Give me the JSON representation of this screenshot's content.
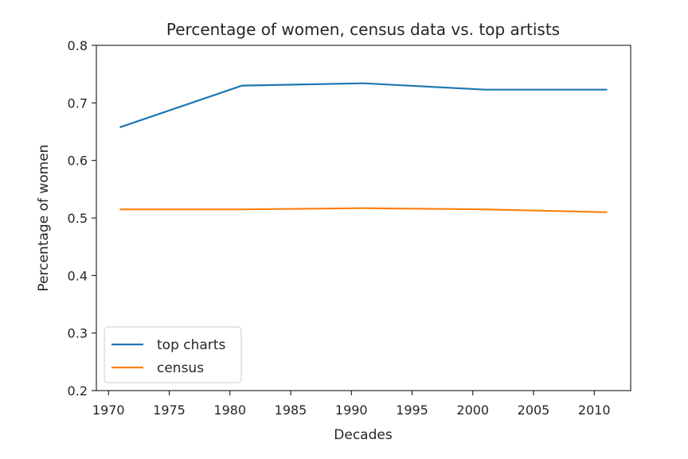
{
  "chart_data": {
    "type": "line",
    "title": "Percentage of women, census data vs. top artists",
    "xlabel": "Decades",
    "ylabel": "Percentage of women",
    "xlim": [
      1969.0,
      2013.0
    ],
    "ylim": [
      0.2,
      0.8
    ],
    "xticks": [
      1970,
      1975,
      1980,
      1985,
      1990,
      1995,
      2000,
      2005,
      2010
    ],
    "yticks": [
      0.2,
      0.3,
      0.4,
      0.5,
      0.6,
      0.7,
      0.8
    ],
    "grid": false,
    "legend_position": "lower-left",
    "x": [
      1971,
      1981,
      1991,
      2001,
      2011
    ],
    "series": [
      {
        "name": "top charts",
        "color": "#1f77b4",
        "values": [
          0.658,
          0.73,
          0.734,
          0.723,
          0.723
        ]
      },
      {
        "name": "census",
        "color": "#ff7f0e",
        "values": [
          0.515,
          0.515,
          0.517,
          0.515,
          0.51
        ]
      }
    ]
  }
}
